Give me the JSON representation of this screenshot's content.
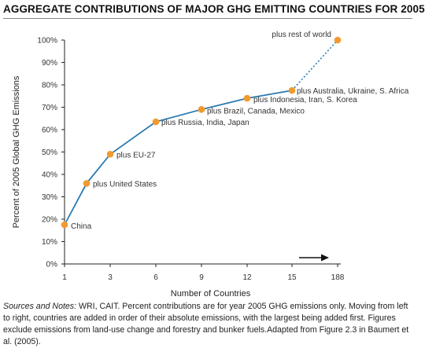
{
  "title": "AGGREGATE CONTRIBUTIONS OF MAJOR GHG EMITTING COUNTRIES FOR 2005",
  "colors": {
    "line": "#2a7bb0",
    "point": "#f29a2e",
    "text": "#333333"
  },
  "chart_data": {
    "type": "line",
    "xlabel": "Number of Countries",
    "ylabel": "Percent of 2005 Global GHG Emissions",
    "x_tick_labels": [
      "1",
      "3",
      "6",
      "9",
      "12",
      "15",
      "188"
    ],
    "y_tick_labels": [
      "0%",
      "10%",
      "20%",
      "30%",
      "40%",
      "50%",
      "60%",
      "70%",
      "80%",
      "90%",
      "100%"
    ],
    "ylim": [
      0,
      100
    ],
    "grid": false,
    "points": [
      {
        "x": "1",
        "y": 17.5,
        "label": "China"
      },
      {
        "x": "2",
        "y": 36,
        "label": "plus United States"
      },
      {
        "x": "3",
        "y": 49,
        "label": "plus  EU-27"
      },
      {
        "x": "6",
        "y": 63.5,
        "label": "plus Russia, India, Japan"
      },
      {
        "x": "9",
        "y": 69,
        "label": "plus Brazil, Canada, Mexico"
      },
      {
        "x": "12",
        "y": 74,
        "label": "plus Indonesia, Iran, S. Korea"
      },
      {
        "x": "15",
        "y": 77.5,
        "label": "plus Australia, Ukraine, S. Africa"
      },
      {
        "x": "188",
        "y": 100,
        "label": "plus rest of world"
      }
    ]
  },
  "notes": {
    "lead": "Sources and Notes:",
    "text": " WRI, CAIT. Percent contributions are for year 2005 GHG emissions only. Moving from left to right, countries are added in order of their absolute emissions, with the largest being added first. Figures exclude emissions from land-use change and forestry and bunker fuels.Adapted from Figure 2.3 in Baumert et al. (2005)."
  }
}
